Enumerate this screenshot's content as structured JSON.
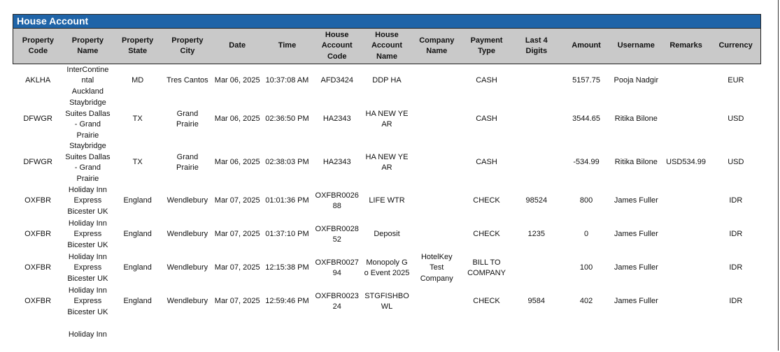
{
  "report": {
    "title": "House Account",
    "header_color": "#1f64a8",
    "columns": [
      "Property Code",
      "Property Name",
      "Property State",
      "Property City",
      "Date",
      "Time",
      "House Account Code",
      "House Account Name",
      "Company Name",
      "Payment Type",
      "Last 4 Digits",
      "Amount",
      "Username",
      "Remarks",
      "Currency"
    ],
    "rows": [
      [
        "AKLHA",
        "InterContinental Auckland",
        "MD",
        "Tres Cantos",
        "Mar 06, 2025",
        "10:37:08 AM",
        "AFD3424",
        "DDP HA",
        "",
        "CASH",
        "",
        "5157.75",
        "Pooja Nadgir",
        "",
        "EUR"
      ],
      [
        "DFWGR",
        "Staybridge Suites Dallas - Grand Prairie",
        "TX",
        "Grand Prairie",
        "Mar 06, 2025",
        "02:36:50 PM",
        "HA2343",
        "HA NEW YEAR",
        "",
        "CASH",
        "",
        "3544.65",
        "Ritika Bilone",
        "",
        "USD"
      ],
      [
        "DFWGR",
        "Staybridge Suites Dallas - Grand Prairie",
        "TX",
        "Grand Prairie",
        "Mar 06, 2025",
        "02:38:03 PM",
        "HA2343",
        "HA NEW YEAR",
        "",
        "CASH",
        "",
        "-534.99",
        "Ritika Bilone",
        "USD534.99",
        "USD"
      ],
      [
        "OXFBR",
        "Holiday Inn Express Bicester UK",
        "England",
        "Wendlebury",
        "Mar 07, 2025",
        "01:01:36 PM",
        "OXFBR002688",
        "LIFE WTR",
        "",
        "CHECK",
        "98524",
        "800",
        "James Fuller",
        "",
        "IDR"
      ],
      [
        "OXFBR",
        "Holiday Inn Express Bicester UK",
        "England",
        "Wendlebury",
        "Mar 07, 2025",
        "01:37:10 PM",
        "OXFBR002852",
        "Deposit",
        "",
        "CHECK",
        "1235",
        "0",
        "James Fuller",
        "",
        "IDR"
      ],
      [
        "OXFBR",
        "Holiday Inn Express Bicester UK",
        "England",
        "Wendlebury",
        "Mar 07, 2025",
        "12:15:38 PM",
        "OXFBR002794",
        "Monopoly Go Event 2025",
        "HotelKey Test Company",
        "BILL TO COMPANY",
        "",
        "100",
        "James Fuller",
        "",
        "IDR"
      ],
      [
        "OXFBR",
        "Holiday Inn Express Bicester UK",
        "England",
        "Wendlebury",
        "Mar 07, 2025",
        "12:59:46 PM",
        "OXFBR002324",
        "STGFISHBOWL",
        "",
        "CHECK",
        "9584",
        "402",
        "James Fuller",
        "",
        "IDR"
      ],
      [
        "",
        "Holiday Inn",
        "",
        "",
        "",
        "",
        "",
        "",
        "",
        "",
        "",
        "",
        "",
        "",
        ""
      ]
    ]
  }
}
